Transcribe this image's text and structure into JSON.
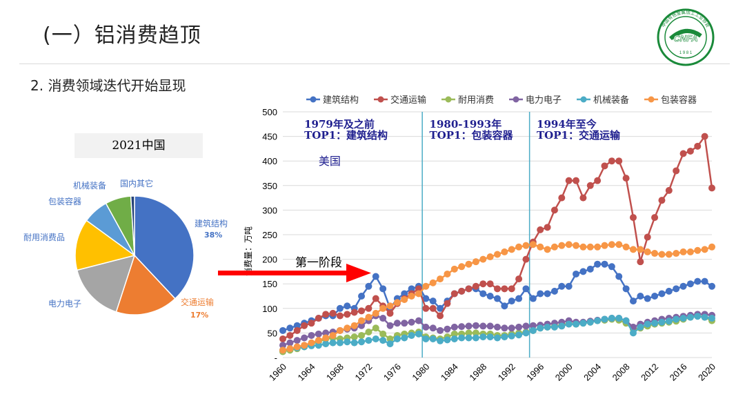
{
  "slide": {
    "title": "(一）铝消费趋顶",
    "subtitle": "2. 消费领域迭代开始显现",
    "arrow_label": "第一阶段",
    "logo": {
      "center_text": "CNFA",
      "year": "1 9 8 1",
      "ring_text": "中国有色金属加工工业协会",
      "color": "#1a8a3a"
    }
  },
  "chart_data": [
    {
      "type": "pie",
      "title": "2021中国",
      "slices": [
        {
          "label": "建筑结构",
          "value": 38,
          "value_label": "38%",
          "color": "#4472c4"
        },
        {
          "label": "交通运输",
          "value": 17,
          "value_label": "17%",
          "color": "#ed7d31"
        },
        {
          "label": "电力电子",
          "value": 16,
          "value_label": "",
          "color": "#a5a5a5"
        },
        {
          "label": "耐用消费品",
          "value": 14,
          "value_label": "",
          "color": "#ffc000"
        },
        {
          "label": "包装容器",
          "value": 7,
          "value_label": "",
          "color": "#5b9bd5"
        },
        {
          "label": "机械装备",
          "value": 7,
          "value_label": "",
          "color": "#70ad47"
        },
        {
          "label": "国内其它",
          "value": 1,
          "value_label": "",
          "color": "#264478"
        }
      ]
    },
    {
      "type": "line",
      "title": "",
      "ylabel": "消费量：万吨",
      "xlabel": "",
      "ylim": [
        0,
        500
      ],
      "yticks": [
        0,
        50,
        100,
        150,
        200,
        250,
        300,
        350,
        400,
        450,
        500
      ],
      "ytick_labels": [
        "-",
        "50",
        "100",
        "150",
        "200",
        "250",
        "300",
        "350",
        "400",
        "450",
        "500"
      ],
      "xlim": [
        1960,
        2020
      ],
      "xticks": [
        "1960",
        "1964",
        "1968",
        "1972",
        "1976",
        "1980",
        "1984",
        "1988",
        "1992",
        "1996",
        "2000",
        "2004",
        "2008",
        "2012",
        "2016",
        "2020"
      ],
      "grid": "horizontal",
      "legend_position": "top",
      "x": [
        1960,
        1961,
        1962,
        1963,
        1964,
        1965,
        1966,
        1967,
        1968,
        1969,
        1970,
        1971,
        1972,
        1973,
        1974,
        1975,
        1976,
        1977,
        1978,
        1979,
        1980,
        1981,
        1982,
        1983,
        1984,
        1985,
        1986,
        1987,
        1988,
        1989,
        1990,
        1991,
        1992,
        1993,
        1994,
        1995,
        1996,
        1997,
        1998,
        1999,
        2000,
        2001,
        2002,
        2003,
        2004,
        2005,
        2006,
        2007,
        2008,
        2009,
        2010,
        2011,
        2012,
        2013,
        2014,
        2015,
        2016,
        2017,
        2018,
        2019,
        2020
      ],
      "series": [
        {
          "name": "建筑结构",
          "color": "#4472c4",
          "values": [
            55,
            60,
            65,
            70,
            75,
            80,
            85,
            85,
            100,
            105,
            100,
            125,
            145,
            165,
            140,
            100,
            120,
            130,
            140,
            145,
            120,
            115,
            100,
            115,
            130,
            135,
            140,
            140,
            130,
            125,
            120,
            105,
            115,
            120,
            140,
            120,
            130,
            130,
            135,
            145,
            145,
            170,
            175,
            180,
            190,
            190,
            185,
            165,
            140,
            115,
            125,
            120,
            125,
            130,
            135,
            140,
            145,
            150,
            155,
            155,
            145
          ]
        },
        {
          "name": "交通运输",
          "color": "#c0504d",
          "values": [
            38,
            45,
            55,
            65,
            70,
            80,
            88,
            90,
            85,
            88,
            92,
            95,
            100,
            120,
            105,
            90,
            110,
            120,
            130,
            140,
            100,
            100,
            85,
            110,
            130,
            135,
            140,
            145,
            150,
            150,
            140,
            140,
            140,
            160,
            200,
            235,
            260,
            265,
            300,
            325,
            360,
            360,
            325,
            350,
            360,
            390,
            400,
            400,
            365,
            285,
            195,
            245,
            285,
            320,
            340,
            380,
            415,
            420,
            430,
            450,
            345
          ]
        },
        {
          "name": "耐用消费",
          "color": "#9bbb59",
          "values": [
            12,
            15,
            18,
            22,
            28,
            32,
            38,
            40,
            38,
            40,
            42,
            45,
            52,
            60,
            48,
            38,
            45,
            48,
            50,
            52,
            42,
            40,
            38,
            42,
            48,
            48,
            50,
            50,
            48,
            48,
            45,
            45,
            48,
            50,
            52,
            55,
            60,
            62,
            64,
            66,
            70,
            68,
            70,
            72,
            75,
            76,
            78,
            76,
            70,
            58,
            60,
            64,
            68,
            70,
            72,
            74,
            78,
            82,
            85,
            82,
            75
          ]
        },
        {
          "name": "电力电子",
          "color": "#8064a2",
          "values": [
            25,
            30,
            35,
            40,
            45,
            48,
            50,
            52,
            55,
            58,
            60,
            65,
            75,
            85,
            80,
            65,
            70,
            70,
            72,
            75,
            62,
            60,
            55,
            58,
            62,
            63,
            64,
            65,
            64,
            64,
            62,
            60,
            60,
            62,
            64,
            65,
            66,
            68,
            70,
            72,
            75,
            72,
            72,
            74,
            76,
            78,
            80,
            80,
            75,
            62,
            68,
            72,
            75,
            78,
            80,
            82,
            84,
            86,
            88,
            88,
            86
          ]
        },
        {
          "name": "机械装备",
          "color": "#4bacc6",
          "values": [
            15,
            18,
            20,
            22,
            24,
            25,
            28,
            30,
            30,
            32,
            30,
            32,
            35,
            38,
            35,
            28,
            38,
            40,
            45,
            48,
            38,
            38,
            34,
            36,
            38,
            40,
            40,
            40,
            42,
            42,
            40,
            42,
            44,
            46,
            50,
            55,
            60,
            62,
            62,
            64,
            68,
            68,
            70,
            72,
            75,
            78,
            80,
            80,
            75,
            50,
            62,
            68,
            70,
            72,
            74,
            78,
            80,
            82,
            84,
            82,
            80
          ]
        },
        {
          "name": "包装容器",
          "color": "#f79646",
          "values": [
            15,
            18,
            22,
            25,
            30,
            35,
            40,
            45,
            55,
            60,
            65,
            75,
            82,
            90,
            100,
            105,
            112,
            118,
            125,
            130,
            145,
            152,
            160,
            170,
            180,
            185,
            190,
            195,
            200,
            205,
            210,
            215,
            220,
            225,
            228,
            230,
            225,
            220,
            225,
            228,
            230,
            228,
            225,
            225,
            225,
            228,
            230,
            230,
            225,
            220,
            220,
            215,
            212,
            210,
            210,
            212,
            215,
            215,
            218,
            220,
            225
          ]
        }
      ],
      "annotations": [
        {
          "text": "1979年及之前",
          "x": 1963,
          "y": 468
        },
        {
          "text": "TOP1：建筑结构",
          "x": 1963,
          "y": 445
        },
        {
          "text": "美国",
          "x": 1965,
          "y": 392
        },
        {
          "text": "1980-1993年",
          "x": 1980.5,
          "y": 468
        },
        {
          "text": "TOP1：包装容器",
          "x": 1980.5,
          "y": 445
        },
        {
          "text": "1994年至今",
          "x": 1995.5,
          "y": 468
        },
        {
          "text": "TOP1：交通运输",
          "x": 1995.5,
          "y": 445
        }
      ],
      "vlines": [
        1979.5,
        1994.5
      ]
    }
  ]
}
